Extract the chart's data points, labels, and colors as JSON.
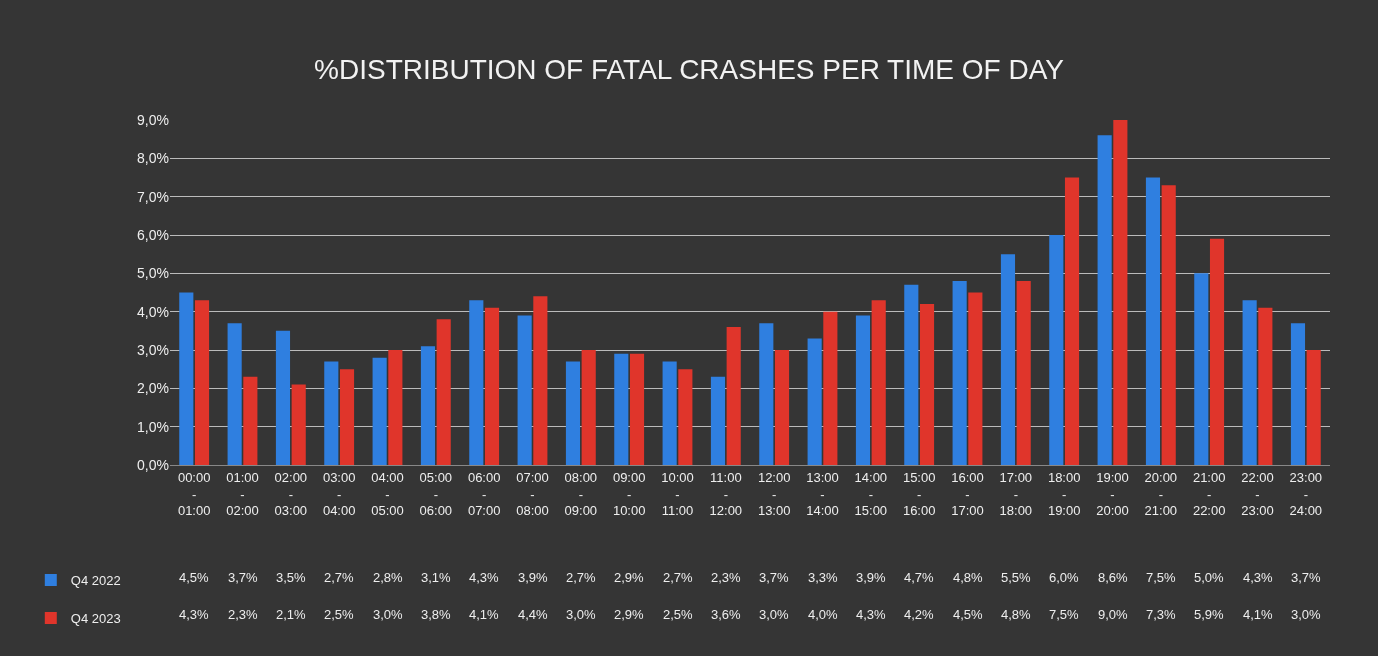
{
  "chart_data": {
    "type": "bar",
    "title": "%DISTRIBUTION OF FATAL CRASHES PER TIME OF DAY",
    "categories": [
      "00:00 - 01:00",
      "01:00 - 02:00",
      "02:00 - 03:00",
      "03:00 - 04:00",
      "04:00 - 05:00",
      "05:00 - 06:00",
      "06:00 - 07:00",
      "07:00 - 08:00",
      "08:00 - 09:00",
      "09:00 - 10:00",
      "10:00 - 11:00",
      "11:00 - 12:00",
      "12:00 - 13:00",
      "13:00 - 14:00",
      "14:00 - 15:00",
      "15:00 - 16:00",
      "16:00 - 17:00",
      "17:00 - 18:00",
      "18:00 - 19:00",
      "19:00 - 20:00",
      "20:00 - 21:00",
      "21:00 - 22:00",
      "22:00 - 23:00",
      "23:00 - 24:00"
    ],
    "series": [
      {
        "name": "Q4 2022",
        "color": "#2f7fe0",
        "values": [
          4.5,
          3.7,
          3.5,
          2.7,
          2.8,
          3.1,
          4.3,
          3.9,
          2.7,
          2.9,
          2.7,
          2.3,
          3.7,
          3.3,
          3.9,
          4.7,
          4.8,
          5.5,
          6.0,
          8.6,
          7.5,
          5.0,
          4.3,
          3.7
        ],
        "value_labels": [
          "4,5%",
          "3,7%",
          "3,5%",
          "2,7%",
          "2,8%",
          "3,1%",
          "4,3%",
          "3,9%",
          "2,7%",
          "2,9%",
          "2,7%",
          "2,3%",
          "3,7%",
          "3,3%",
          "3,9%",
          "4,7%",
          "4,8%",
          "5,5%",
          "6,0%",
          "8,6%",
          "7,5%",
          "5,0%",
          "4,3%",
          "3,7%"
        ]
      },
      {
        "name": "Q4 2023",
        "color": "#e0352b",
        "values": [
          4.3,
          2.3,
          2.1,
          2.5,
          3.0,
          3.8,
          4.1,
          4.4,
          3.0,
          2.9,
          2.5,
          3.6,
          3.0,
          4.0,
          4.3,
          4.2,
          4.5,
          4.8,
          7.5,
          9.0,
          7.3,
          5.9,
          4.1,
          3.0
        ],
        "value_labels": [
          "4,3%",
          "2,3%",
          "2,1%",
          "2,5%",
          "3,0%",
          "3,8%",
          "4,1%",
          "4,4%",
          "3,0%",
          "2,9%",
          "2,5%",
          "3,6%",
          "3,0%",
          "4,0%",
          "4,3%",
          "4,2%",
          "4,5%",
          "4,8%",
          "7,5%",
          "9,0%",
          "7,3%",
          "5,9%",
          "4,1%",
          "3,0%"
        ]
      }
    ],
    "ylim": [
      0,
      9
    ],
    "yticks": [
      {
        "value": 0,
        "label": "0,0%"
      },
      {
        "value": 1,
        "label": "1,0%"
      },
      {
        "value": 2,
        "label": "2,0%"
      },
      {
        "value": 3,
        "label": "3,0%"
      },
      {
        "value": 4,
        "label": "4,0%"
      },
      {
        "value": 5,
        "label": "5,0%"
      },
      {
        "value": 6,
        "label": "6,0%"
      },
      {
        "value": 7,
        "label": "7,0%"
      },
      {
        "value": 8,
        "label": "8,0%"
      },
      {
        "value": 9,
        "label": "9,0%"
      }
    ],
    "grid": "y",
    "legend": "bottom left"
  }
}
